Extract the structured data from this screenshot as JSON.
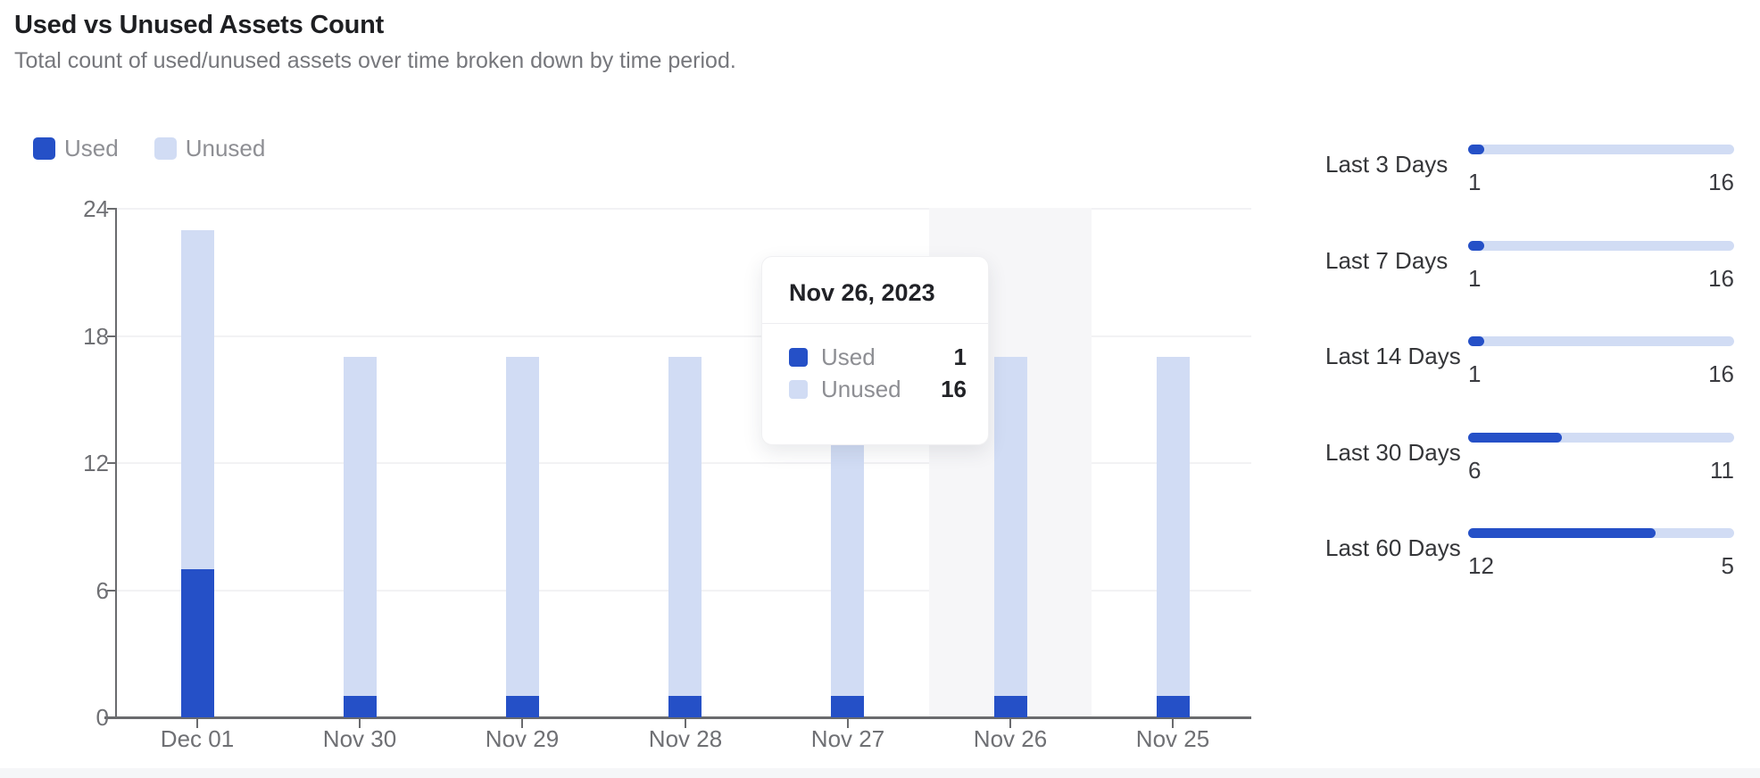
{
  "header": {
    "title": "Used vs Unused Assets Count",
    "subtitle": "Total count of used/unused assets over time broken down by time period."
  },
  "legend": {
    "items": [
      {
        "label": "Used",
        "key": "used"
      },
      {
        "label": "Unused",
        "key": "unused"
      }
    ]
  },
  "colors": {
    "used": "#2550c7",
    "unused": "#d1dcf4",
    "grid": "#f2f2f4",
    "axis": "#6a6b6e",
    "axis_text": "#6f7074",
    "hover_band": "#f6f6f8"
  },
  "chart_data": {
    "type": "bar",
    "stacked": true,
    "title": "Used vs Unused Assets Count",
    "categories": [
      "Dec 01",
      "Nov 30",
      "Nov 29",
      "Nov 28",
      "Nov 27",
      "Nov 26",
      "Nov 25"
    ],
    "series": [
      {
        "name": "Used",
        "color": "#2550c7",
        "values": [
          7,
          1,
          1,
          1,
          1,
          1,
          1
        ]
      },
      {
        "name": "Unused",
        "color": "#d1dcf4",
        "values": [
          16,
          16,
          16,
          16,
          16,
          16,
          16
        ]
      }
    ],
    "yticks": [
      0,
      6,
      12,
      18,
      24
    ],
    "ylim": [
      0,
      24
    ],
    "grid": "horizontal",
    "legend_position": "top-left",
    "highlighted_category": "Nov 26"
  },
  "tooltip": {
    "title": "Nov 26, 2023",
    "rows": [
      {
        "label": "Used",
        "value": "1"
      },
      {
        "label": "Unused",
        "value": "16"
      }
    ]
  },
  "time_periods": [
    {
      "label": "Last 3 Days",
      "used": 1,
      "unused": 16
    },
    {
      "label": "Last 7 Days",
      "used": 1,
      "unused": 16
    },
    {
      "label": "Last 14 Days",
      "used": 1,
      "unused": 16
    },
    {
      "label": "Last 30 Days",
      "used": 6,
      "unused": 11
    },
    {
      "label": "Last 60 Days",
      "used": 12,
      "unused": 5
    }
  ]
}
